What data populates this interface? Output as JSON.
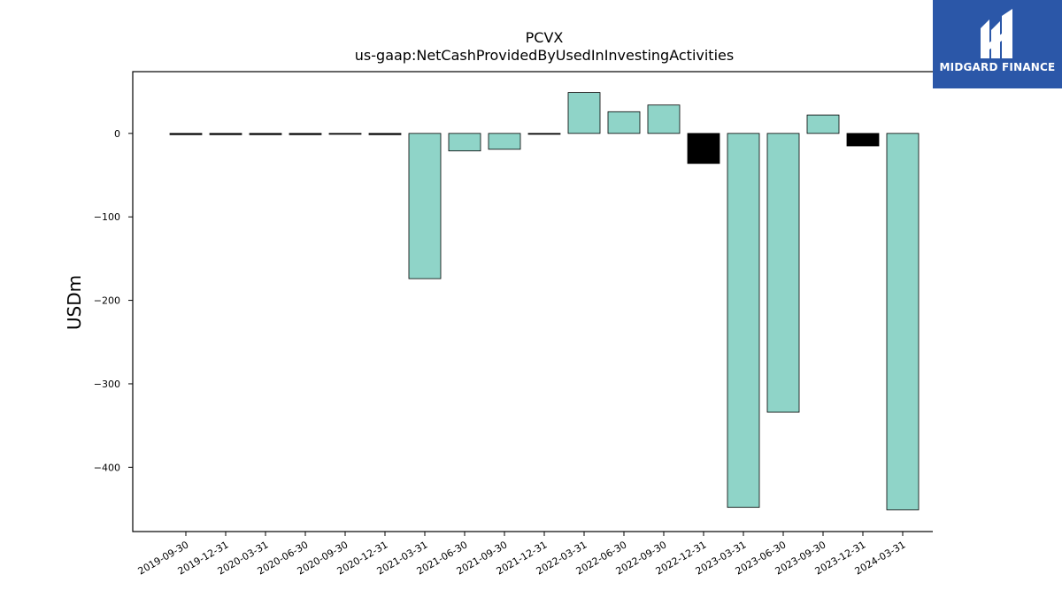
{
  "chart_data": {
    "type": "bar",
    "title": "PCVX",
    "subtitle": "us-gaap:NetCashProvidedByUsedInInvestingActivities",
    "ylabel": "USDm",
    "xlabel": "",
    "ylim": [
      -477,
      74
    ],
    "yticks": [
      0,
      -100,
      -200,
      -300,
      -400
    ],
    "yticklabels": [
      "0",
      "−100",
      "−200",
      "−300",
      "−400"
    ],
    "grid": false,
    "categories": [
      "2019-09-30",
      "2019-12-31",
      "2020-03-31",
      "2020-06-30",
      "2020-09-30",
      "2020-12-31",
      "2021-03-31",
      "2021-06-30",
      "2021-09-30",
      "2021-12-31",
      "2022-03-31",
      "2022-06-30",
      "2022-09-30",
      "2022-12-31",
      "2023-03-31",
      "2023-06-30",
      "2023-09-30",
      "2023-12-31",
      "2024-03-31"
    ],
    "values": [
      -1.5,
      -1.5,
      -1.5,
      -1.5,
      -0.5,
      -1.5,
      -174,
      -21,
      -19,
      -0.5,
      49,
      26,
      34,
      -36,
      -448,
      -334,
      22,
      -15,
      -451
    ],
    "bar_colors": [
      "#000000",
      "#000000",
      "#000000",
      "#000000",
      "#000000",
      "#000000",
      "#8fd4c8",
      "#8fd4c8",
      "#8fd4c8",
      "#000000",
      "#8fd4c8",
      "#8fd4c8",
      "#8fd4c8",
      "#000000",
      "#8fd4c8",
      "#8fd4c8",
      "#8fd4c8",
      "#000000",
      "#8fd4c8"
    ],
    "edge_color": "#000000"
  },
  "logo": {
    "text": "MIDGARD FINANCE",
    "background": "#2b57a8"
  }
}
